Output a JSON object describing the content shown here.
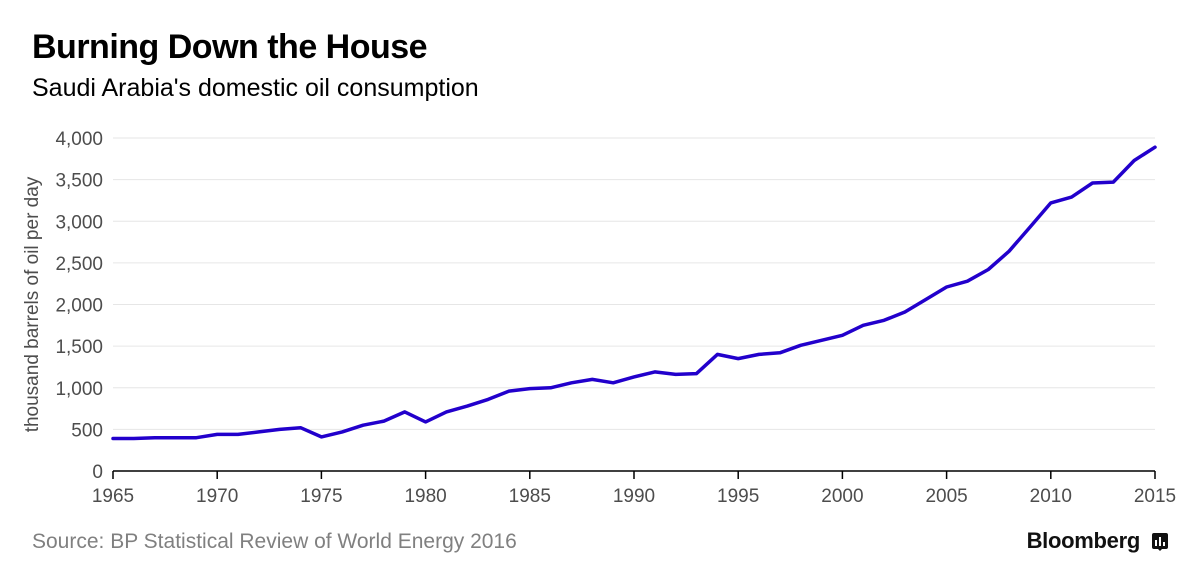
{
  "header": {
    "title": "Burning Down the House",
    "subtitle": "Saudi Arabia's domestic oil consumption"
  },
  "footer": {
    "source": "Source: BP Statistical Review of World Energy 2016",
    "brand": "Bloomberg"
  },
  "colors": {
    "line": "#2200cc",
    "grid": "#e6e6e6",
    "axis": "#000000",
    "tick_label": "#4d4d4d"
  },
  "chart_data": {
    "type": "line",
    "title": "Burning Down the House",
    "subtitle": "Saudi Arabia's domestic oil consumption",
    "xlabel": "",
    "ylabel": "thousand barrels of oil per day",
    "xlim": [
      1965,
      2015
    ],
    "ylim": [
      0,
      4000
    ],
    "grid": true,
    "x_ticks": [
      1965,
      1970,
      1975,
      1980,
      1985,
      1990,
      1995,
      2000,
      2005,
      2010,
      2015
    ],
    "x_tick_labels": [
      "1965",
      "1970",
      "1975",
      "1980",
      "1985",
      "1990",
      "1995",
      "2000",
      "2005",
      "2010",
      "2015"
    ],
    "y_ticks": [
      0,
      500,
      1000,
      1500,
      2000,
      2500,
      3000,
      3500,
      4000
    ],
    "y_tick_labels": [
      "0",
      "500",
      "1,000",
      "1,500",
      "2,000",
      "2,500",
      "3,000",
      "3,500",
      "4,000"
    ],
    "series": [
      {
        "x": [
          1965,
          1966,
          1967,
          1968,
          1969,
          1970,
          1971,
          1972,
          1973,
          1974,
          1975,
          1976,
          1977,
          1978,
          1979,
          1980,
          1981,
          1982,
          1983,
          1984,
          1985,
          1986,
          1987,
          1988,
          1989,
          1990,
          1991,
          1992,
          1993,
          1994,
          1995,
          1996,
          1997,
          1998,
          1999,
          2000,
          2001,
          2002,
          2003,
          2004,
          2005,
          2006,
          2007,
          2008,
          2009,
          2010,
          2011,
          2012,
          2013,
          2014,
          2015
        ],
        "values": [
          390,
          390,
          400,
          400,
          400,
          440,
          440,
          470,
          500,
          520,
          410,
          470,
          550,
          600,
          710,
          590,
          710,
          780,
          860,
          960,
          990,
          1000,
          1060,
          1100,
          1060,
          1130,
          1190,
          1160,
          1170,
          1400,
          1350,
          1400,
          1420,
          1510,
          1570,
          1630,
          1750,
          1810,
          1910,
          2060,
          2210,
          2280,
          2420,
          2640,
          2930,
          3220,
          3290,
          3460,
          3470,
          3730,
          3890
        ]
      }
    ]
  }
}
